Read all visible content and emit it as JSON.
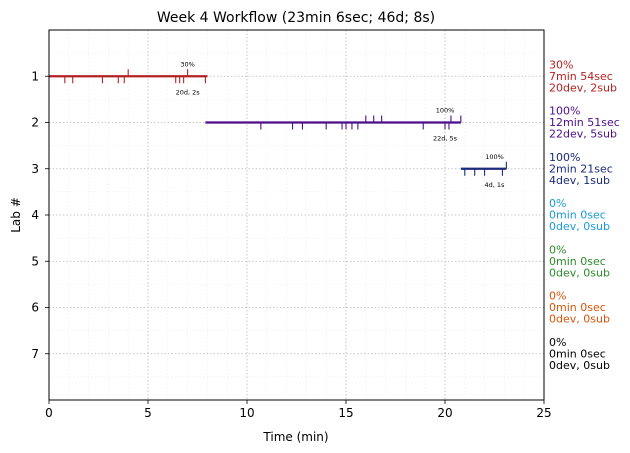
{
  "chart_data": {
    "type": "line",
    "title": "Week 4 Workflow (23min 6sec; 46d; 8s)",
    "xlabel": "Time (min)",
    "ylabel": "Lab #",
    "xlim": [
      0,
      25
    ],
    "ylim": [
      8,
      0
    ],
    "x_ticks": [
      "0",
      "5",
      "10",
      "15",
      "20",
      "25"
    ],
    "y_ticks": [
      "1",
      "2",
      "3",
      "4",
      "5",
      "6",
      "7"
    ],
    "grid": true,
    "labs": [
      {
        "lab": 1,
        "color": "#b22222",
        "start": 0.0,
        "end": 8.0,
        "pct_label": "30%",
        "pct_at": 7.0,
        "count_label": "20d, 2s",
        "count_at": 7.0,
        "dev_marks": [
          0.8,
          1.2,
          2.7,
          3.5,
          3.8,
          6.4,
          6.6,
          6.8,
          7.9
        ],
        "sub_marks": [
          4.0,
          7.0
        ],
        "summary": [
          "30%",
          "7min 54sec",
          "20dev, 2sub"
        ]
      },
      {
        "lab": 2,
        "color": "#4b0f8a",
        "start": 7.9,
        "end": 20.8,
        "pct_label": "100%",
        "pct_at": 20.0,
        "count_label": "22d, 5s",
        "count_at": 20.0,
        "dev_marks": [
          10.7,
          12.3,
          12.8,
          14.0,
          14.8,
          15.0,
          15.3,
          15.6,
          18.9,
          20.0,
          20.2
        ],
        "sub_marks": [
          16.0,
          16.4,
          16.8,
          20.3,
          20.8
        ],
        "summary": [
          "100%",
          "12min 51sec",
          "22dev, 5sub"
        ]
      },
      {
        "lab": 3,
        "color": "#1b2a7a",
        "start": 20.8,
        "end": 23.1,
        "pct_label": "100%",
        "pct_at": 22.5,
        "count_label": "4d, 1s",
        "count_at": 22.5,
        "dev_marks": [
          21.0,
          21.5,
          22.0,
          22.9
        ],
        "sub_marks": [
          23.1
        ],
        "summary": [
          "100%",
          "2min 21sec",
          "4dev, 1sub"
        ]
      },
      {
        "lab": 4,
        "color": "#1a9ad6",
        "summary": [
          "0%",
          "0min 0sec",
          "0dev, 0sub"
        ]
      },
      {
        "lab": 5,
        "color": "#2e8b2e",
        "summary": [
          "0%",
          "0min 0sec",
          "0dev, 0sub"
        ]
      },
      {
        "lab": 6,
        "color": "#d9540b",
        "summary": [
          "0%",
          "0min 0sec",
          "0dev, 0sub"
        ]
      },
      {
        "lab": 7,
        "color": "#000000",
        "summary": [
          "0%",
          "0min 0sec",
          "0dev, 0sub"
        ]
      }
    ]
  }
}
